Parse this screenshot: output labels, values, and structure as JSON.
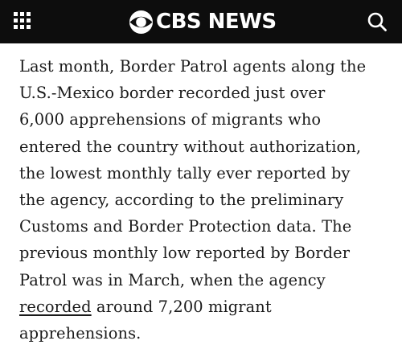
{
  "header": {
    "menu_icon": "grid-menu-icon",
    "logo_icon": "cbs-eye-icon",
    "logo_text": "CBS NEWS",
    "search_icon": "search-icon",
    "background_color": "#0d0d0d"
  },
  "article": {
    "lines": [
      "Last month, Border Patrol agents along the",
      "U.S.-Mexico border recorded just over",
      "6,000 apprehensions of migrants who",
      "entered the country without authorization,",
      "the lowest monthly tally ever reported by",
      "the agency, according to the preliminary",
      "Customs and Border Protection data. The",
      "previous monthly low reported by Border",
      "Patrol was in March, when the agency"
    ],
    "link_text": "recorded",
    "after_link": " around 7,200 migrant",
    "last_line": "apprehensions."
  }
}
